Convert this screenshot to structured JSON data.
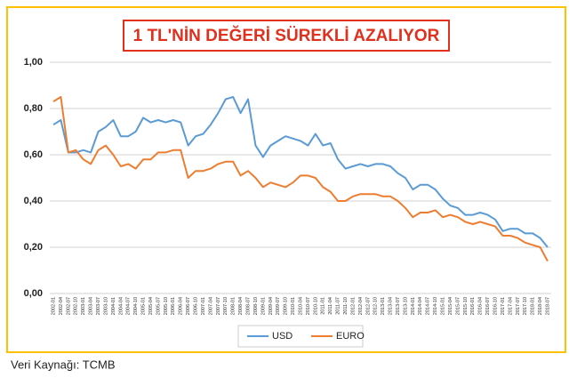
{
  "chart_data": {
    "type": "line",
    "title": "1 TL'NİN DEĞERİ SÜREKLİ AZALIYOR",
    "source": "Veri Kaynağı: TCMB",
    "categories": [
      "2002-01",
      "2002-04",
      "2002-07",
      "2002-10",
      "2003-01",
      "2003-04",
      "2003-07",
      "2003-10",
      "2004-01",
      "2004-04",
      "2004-07",
      "2004-10",
      "2005-01",
      "2005-04",
      "2005-07",
      "2005-10",
      "2006-01",
      "2006-04",
      "2006-07",
      "2006-10",
      "2007-01",
      "2007-04",
      "2007-07",
      "2007-10",
      "2008-01",
      "2008-04",
      "2008-07",
      "2008-10",
      "2009-01",
      "2009-04",
      "2009-07",
      "2009-10",
      "2010-01",
      "2010-04",
      "2010-07",
      "2010-10",
      "2011-01",
      "2011-04",
      "2011-07",
      "2011-10",
      "2012-01",
      "2012-04",
      "2012-07",
      "2012-10",
      "2013-01",
      "2013-04",
      "2013-07",
      "2013-10",
      "2014-01",
      "2014-04",
      "2014-07",
      "2014-10",
      "2015-01",
      "2015-04",
      "2015-07",
      "2015-10",
      "2016-01",
      "2016-04",
      "2016-07",
      "2016-10",
      "2017-01",
      "2017-04",
      "2017-07",
      "2017-10",
      "2018-01",
      "2018-04",
      "2018-07"
    ],
    "series": [
      {
        "name": "USD",
        "color": "#5b9bd5",
        "values": [
          0.73,
          0.75,
          0.61,
          0.61,
          0.62,
          0.61,
          0.7,
          0.72,
          0.75,
          0.68,
          0.68,
          0.7,
          0.76,
          0.74,
          0.75,
          0.74,
          0.75,
          0.74,
          0.64,
          0.68,
          0.69,
          0.73,
          0.78,
          0.84,
          0.85,
          0.78,
          0.84,
          0.64,
          0.59,
          0.64,
          0.66,
          0.68,
          0.67,
          0.66,
          0.64,
          0.69,
          0.64,
          0.65,
          0.58,
          0.54,
          0.55,
          0.56,
          0.55,
          0.56,
          0.56,
          0.55,
          0.52,
          0.5,
          0.45,
          0.47,
          0.47,
          0.45,
          0.41,
          0.38,
          0.37,
          0.34,
          0.34,
          0.35,
          0.34,
          0.32,
          0.27,
          0.28,
          0.28,
          0.26,
          0.26,
          0.24,
          0.2
        ]
      },
      {
        "name": "EURO",
        "color": "#ed7d31",
        "values": [
          0.83,
          0.85,
          0.61,
          0.62,
          0.58,
          0.56,
          0.62,
          0.64,
          0.6,
          0.55,
          0.56,
          0.54,
          0.58,
          0.58,
          0.61,
          0.61,
          0.62,
          0.62,
          0.5,
          0.53,
          0.53,
          0.54,
          0.56,
          0.57,
          0.57,
          0.51,
          0.53,
          0.5,
          0.46,
          0.48,
          0.47,
          0.46,
          0.48,
          0.51,
          0.51,
          0.5,
          0.46,
          0.44,
          0.4,
          0.4,
          0.42,
          0.43,
          0.43,
          0.43,
          0.42,
          0.42,
          0.4,
          0.37,
          0.33,
          0.35,
          0.35,
          0.36,
          0.33,
          0.34,
          0.33,
          0.31,
          0.3,
          0.31,
          0.3,
          0.29,
          0.25,
          0.25,
          0.24,
          0.22,
          0.21,
          0.2,
          0.14
        ]
      }
    ],
    "ylim": [
      0,
      1
    ],
    "yticks": [
      {
        "value": 0,
        "label": "0,00"
      },
      {
        "value": 0.2,
        "label": "0,20"
      },
      {
        "value": 0.4,
        "label": "0,40"
      },
      {
        "value": 0.6,
        "label": "0,60"
      },
      {
        "value": 0.8,
        "label": "0,80"
      },
      {
        "value": 1,
        "label": "1,00"
      }
    ],
    "grid": true,
    "legend": "bottom"
  }
}
